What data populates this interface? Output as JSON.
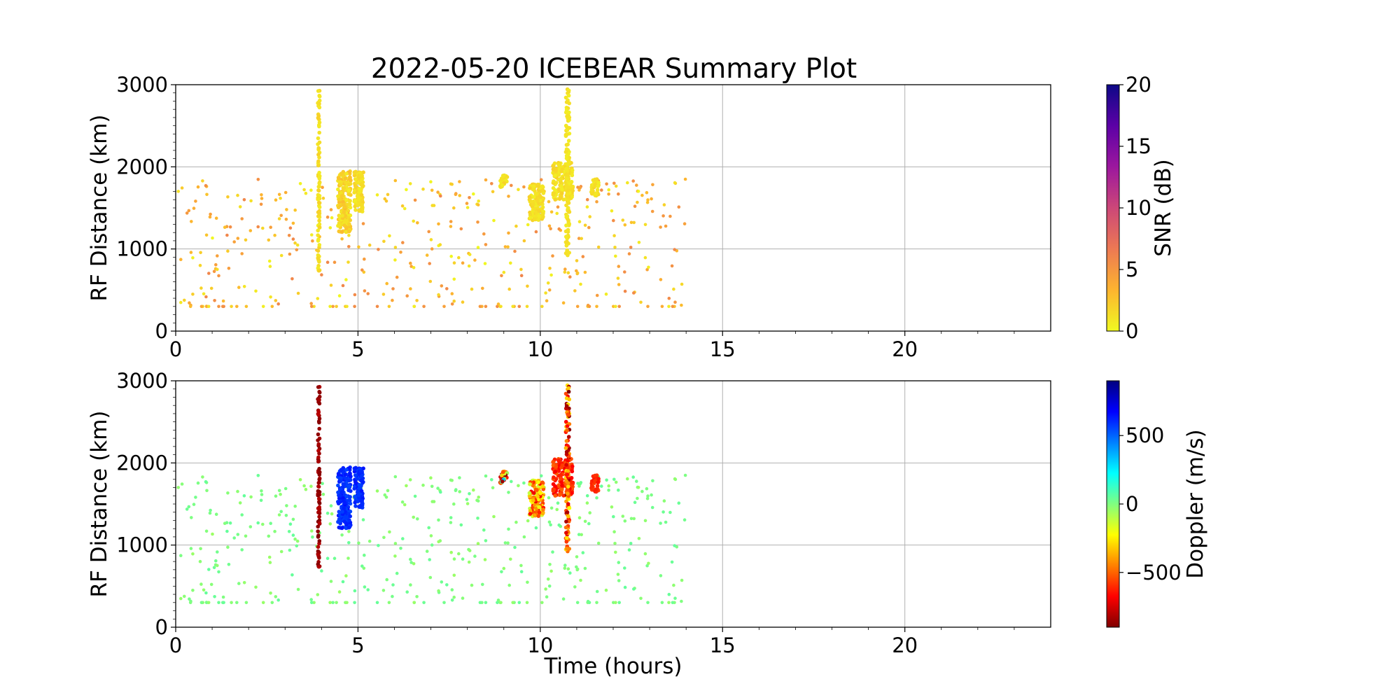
{
  "chart_data": [
    {
      "type": "scatter",
      "title": "2022-05-20 ICEBEAR Summary Plot",
      "xlabel": "",
      "ylabel": "RF Distance (km)",
      "xlim": [
        0,
        24
      ],
      "ylim": [
        0,
        3000
      ],
      "xticks": [
        "0",
        "5",
        "10",
        "15",
        "20"
      ],
      "yticks": [
        "0",
        "1000",
        "2000",
        "3000"
      ],
      "grid": true,
      "colorbar": {
        "label": "SNR (dB)",
        "range": [
          0,
          20
        ],
        "ticks": [
          "0",
          "5",
          "10",
          "15",
          "20"
        ],
        "colormap": "plasma_r",
        "stops": [
          "#f0f921",
          "#fdb42f",
          "#ed7953",
          "#cc4778",
          "#9c179e",
          "#5c01a6",
          "#0d0887"
        ]
      },
      "clusters": [
        {
          "x": [
            3.9,
            3.95
          ],
          "y": [
            700,
            2950
          ],
          "snr": [
            0.5,
            2
          ],
          "density": 30
        },
        {
          "x": [
            4.45,
            4.8
          ],
          "y": [
            1200,
            1950
          ],
          "snr": [
            0.5,
            3
          ],
          "density": 60
        },
        {
          "x": [
            4.9,
            5.15
          ],
          "y": [
            1450,
            1950
          ],
          "snr": [
            0.5,
            2
          ],
          "density": 30
        },
        {
          "x": [
            8.9,
            9.1
          ],
          "y": [
            1750,
            1900
          ],
          "snr": [
            0.5,
            2
          ],
          "density": 10
        },
        {
          "x": [
            9.7,
            10.1
          ],
          "y": [
            1350,
            1800
          ],
          "snr": [
            0.5,
            2
          ],
          "density": 40
        },
        {
          "x": [
            10.35,
            10.9
          ],
          "y": [
            1600,
            2050
          ],
          "snr": [
            0.5,
            2
          ],
          "density": 50
        },
        {
          "x": [
            10.7,
            10.8
          ],
          "y": [
            900,
            2950
          ],
          "snr": [
            0.5,
            1.5
          ],
          "density": 40
        },
        {
          "x": [
            11.4,
            11.6
          ],
          "y": [
            1650,
            1850
          ],
          "snr": [
            0.5,
            2
          ],
          "density": 12
        }
      ],
      "background": {
        "x": [
          0,
          14
        ],
        "y": [
          300,
          1850
        ],
        "snr": [
          0,
          6
        ],
        "count": 420,
        "floor_km": 300
      }
    },
    {
      "type": "scatter",
      "title": "",
      "xlabel": "Time (hours)",
      "ylabel": "RF Distance (km)",
      "xlim": [
        0,
        24
      ],
      "ylim": [
        0,
        3000
      ],
      "xticks": [
        "0",
        "5",
        "10",
        "15",
        "20"
      ],
      "yticks": [
        "0",
        "1000",
        "2000",
        "3000"
      ],
      "grid": true,
      "colorbar": {
        "label": "Doppler (m/s)",
        "range": [
          -900,
          900
        ],
        "ticks": [
          {
            "value": 500,
            "label": "500"
          },
          {
            "value": 0,
            "label": "0"
          },
          {
            "value": -500,
            "label": "−500"
          }
        ],
        "colormap": "jet_r",
        "stops": [
          "#800000",
          "#ff0000",
          "#ff8000",
          "#ffff00",
          "#80ff80",
          "#00ffff",
          "#0080ff",
          "#0000ff",
          "#000080"
        ]
      },
      "clusters": [
        {
          "x": [
            3.9,
            3.95
          ],
          "y": [
            700,
            2950
          ],
          "doppler": [
            -900,
            -800
          ],
          "density": 30
        },
        {
          "x": [
            4.45,
            4.8
          ],
          "y": [
            1200,
            1950
          ],
          "doppler": [
            550,
            650
          ],
          "density": 60
        },
        {
          "x": [
            4.9,
            5.15
          ],
          "y": [
            1450,
            1950
          ],
          "doppler": [
            550,
            650
          ],
          "density": 30
        },
        {
          "x": [
            8.9,
            9.1
          ],
          "y": [
            1750,
            1900
          ],
          "doppler": [
            -900,
            400
          ],
          "density": 10
        },
        {
          "x": [
            9.7,
            10.1
          ],
          "y": [
            1350,
            1800
          ],
          "doppler": [
            -700,
            -100
          ],
          "density": 40
        },
        {
          "x": [
            10.35,
            10.9
          ],
          "y": [
            1600,
            2050
          ],
          "doppler": [
            -700,
            -500
          ],
          "density": 50
        },
        {
          "x": [
            10.7,
            10.8
          ],
          "y": [
            900,
            2950
          ],
          "doppler": [
            -900,
            -200
          ],
          "density": 40
        },
        {
          "x": [
            11.4,
            11.6
          ],
          "y": [
            1650,
            1850
          ],
          "doppler": [
            -650,
            -550
          ],
          "density": 12
        }
      ],
      "background": {
        "x": [
          0,
          14
        ],
        "y": [
          300,
          1850
        ],
        "doppler": [
          -50,
          50
        ],
        "count": 420,
        "floor_km": 300
      }
    }
  ]
}
